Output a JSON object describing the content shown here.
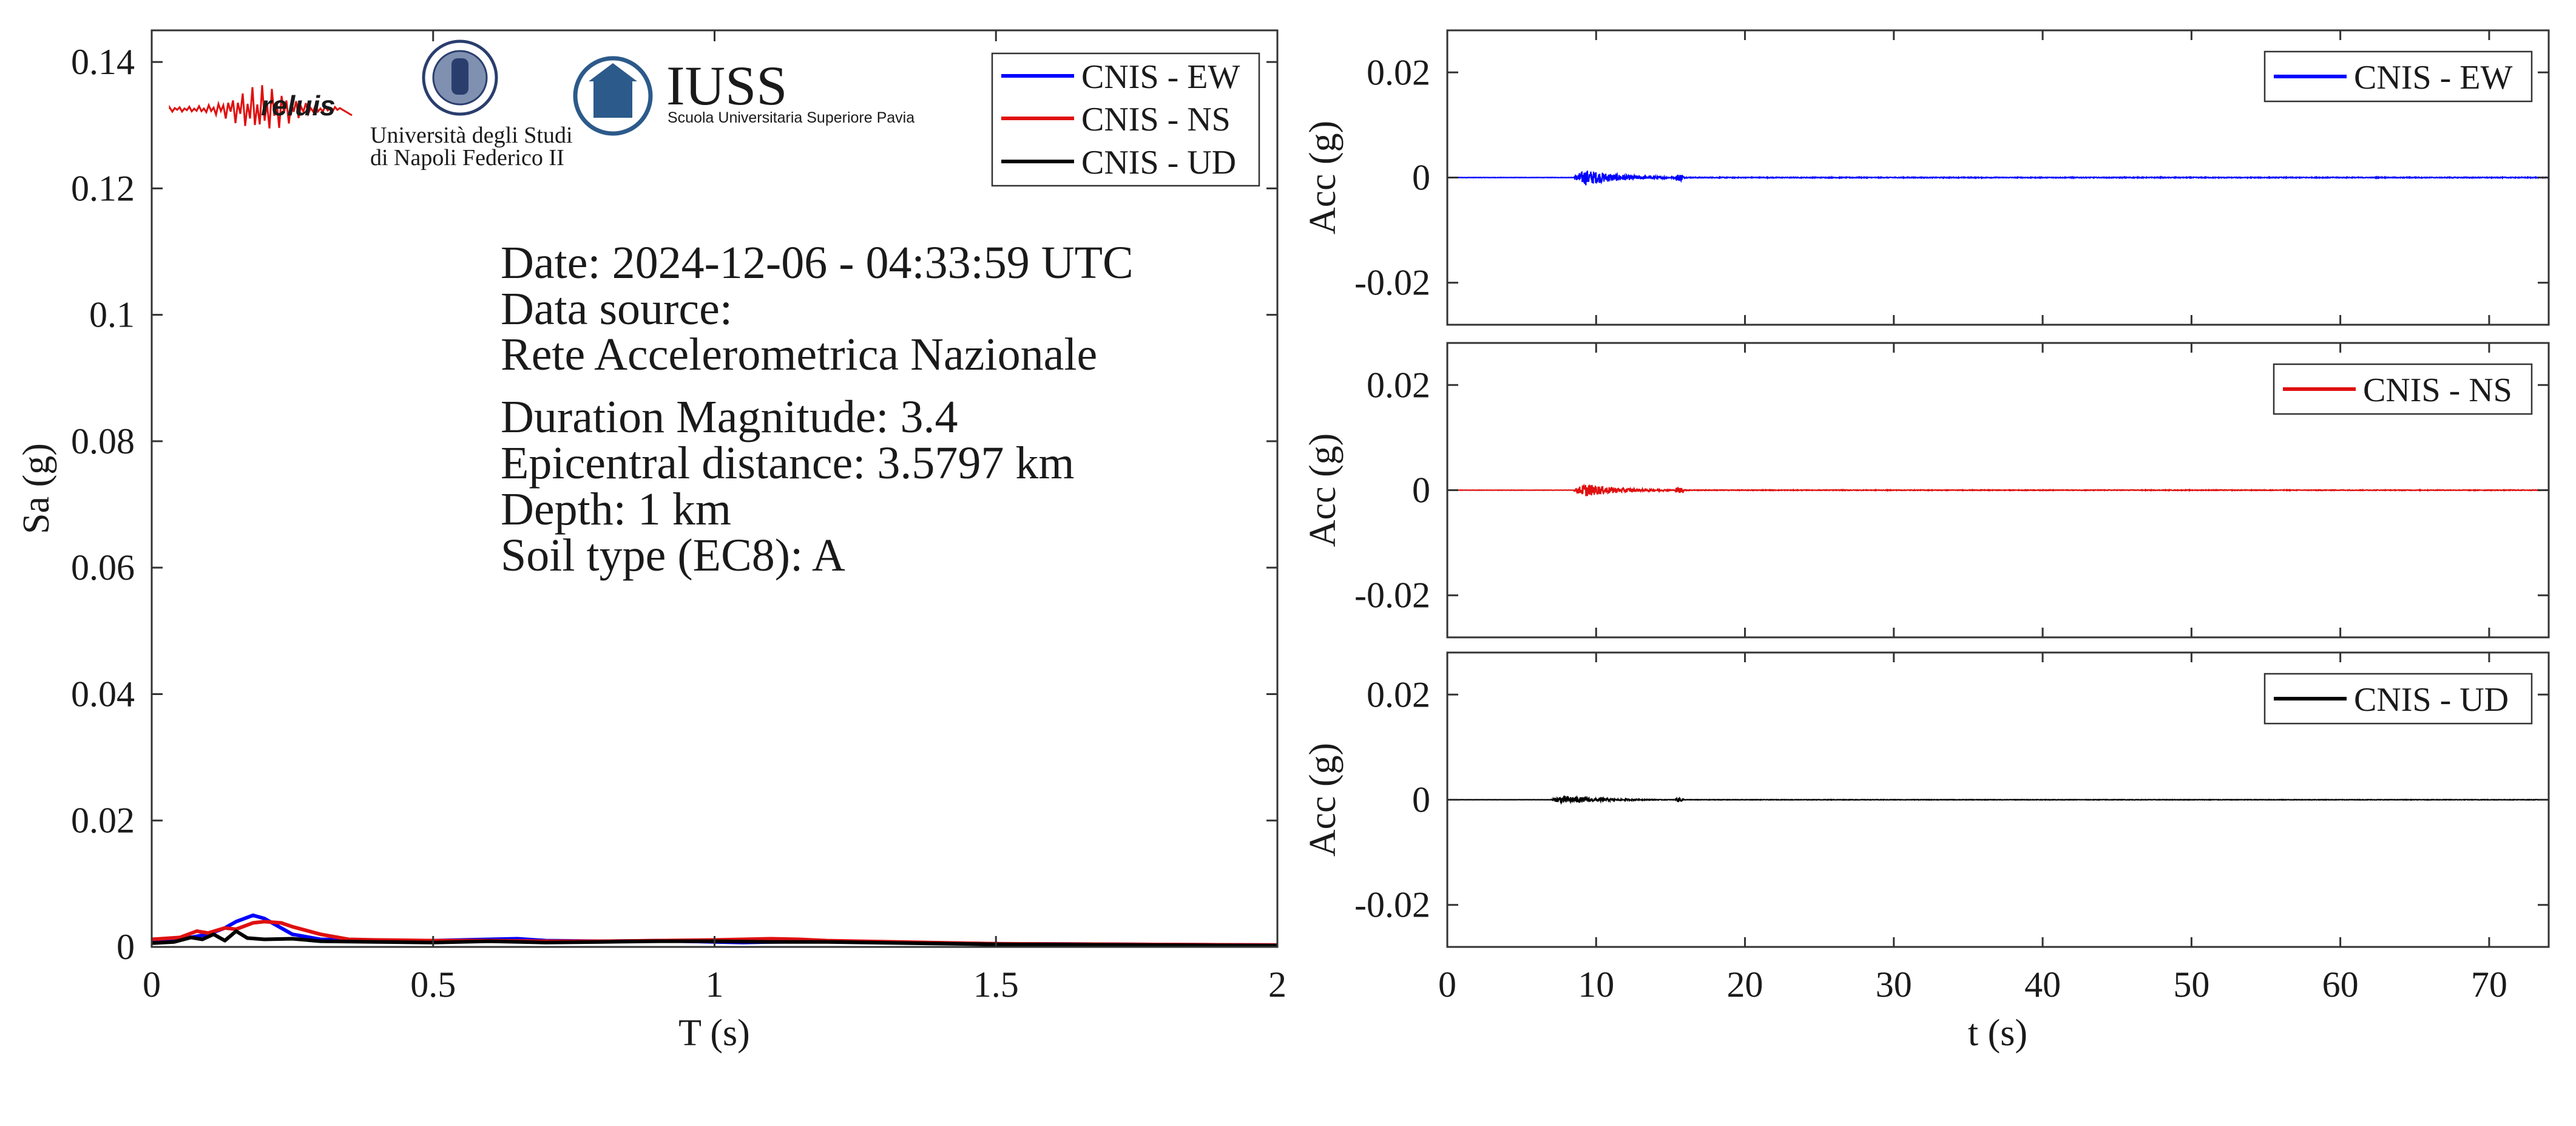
{
  "chart_data": [
    {
      "type": "line",
      "title": "",
      "xlabel": "T (s)",
      "ylabel": "Sa (g)",
      "xlim": [
        0,
        2
      ],
      "ylim": [
        0,
        0.145
      ],
      "xticks": [
        0,
        0.5,
        1,
        1.5,
        2
      ],
      "xtick_labels": [
        "0",
        "0.5",
        "1",
        "1.5",
        "2"
      ],
      "yticks": [
        0,
        0.02,
        0.04,
        0.06,
        0.08,
        0.1,
        0.12,
        0.14
      ],
      "ytick_labels": [
        "0",
        "0.02",
        "0.04",
        "0.06",
        "0.08",
        "0.1",
        "0.12",
        "0.14"
      ],
      "grid": false,
      "legend_position": "top-right",
      "series": [
        {
          "name": "CNIS - EW",
          "color": "#0000ff",
          "x": [
            0,
            0.05,
            0.1,
            0.13,
            0.15,
            0.18,
            0.2,
            0.25,
            0.3,
            0.4,
            0.5,
            0.6,
            0.65,
            0.7,
            0.8,
            0.9,
            1.0,
            1.05,
            1.1,
            1.2,
            1.5,
            2.0
          ],
          "y": [
            0.001,
            0.0012,
            0.002,
            0.003,
            0.004,
            0.005,
            0.0045,
            0.002,
            0.0012,
            0.001,
            0.001,
            0.0012,
            0.0013,
            0.001,
            0.0009,
            0.001,
            0.0008,
            0.0007,
            0.0008,
            0.0009,
            0.0005,
            0.0003
          ]
        },
        {
          "name": "CNIS - NS",
          "color": "#e01010",
          "x": [
            0,
            0.05,
            0.08,
            0.1,
            0.13,
            0.15,
            0.18,
            0.2,
            0.23,
            0.25,
            0.3,
            0.35,
            0.4,
            0.5,
            0.6,
            0.7,
            0.8,
            0.9,
            1.0,
            1.1,
            1.15,
            1.2,
            1.5,
            2.0
          ],
          "y": [
            0.0012,
            0.0015,
            0.0025,
            0.0022,
            0.003,
            0.0028,
            0.0038,
            0.004,
            0.0038,
            0.0032,
            0.002,
            0.0012,
            0.0011,
            0.001,
            0.001,
            0.0009,
            0.0009,
            0.001,
            0.0011,
            0.0013,
            0.0012,
            0.001,
            0.0005,
            0.0003
          ]
        },
        {
          "name": "CNIS - UD",
          "color": "#000000",
          "x": [
            0,
            0.04,
            0.07,
            0.09,
            0.11,
            0.13,
            0.15,
            0.17,
            0.2,
            0.25,
            0.3,
            0.4,
            0.5,
            0.6,
            0.7,
            0.8,
            0.9,
            1.0,
            1.1,
            1.2,
            1.5,
            2.0
          ],
          "y": [
            0.0006,
            0.0008,
            0.0015,
            0.0012,
            0.002,
            0.001,
            0.0025,
            0.0014,
            0.0012,
            0.0013,
            0.0009,
            0.0008,
            0.0007,
            0.0009,
            0.0007,
            0.0008,
            0.0009,
            0.0009,
            0.0008,
            0.0008,
            0.0004,
            0.0002
          ]
        }
      ]
    },
    {
      "type": "line",
      "title": "",
      "xlabel": "",
      "ylabel": "Acc (g)",
      "xlim": [
        0,
        74
      ],
      "ylim": [
        -0.028,
        0.028
      ],
      "yticks": [
        -0.02,
        0,
        0.02
      ],
      "ytick_labels": [
        "-0.02",
        "0",
        "0.02"
      ],
      "xticks": [
        0,
        10,
        20,
        30,
        40,
        50,
        60,
        70
      ],
      "grid": false,
      "legend_position": "top-right",
      "series": [
        {
          "name": "CNIS - EW",
          "color": "#0000ff",
          "onset": 8.5,
          "peak": 0.0015
        }
      ]
    },
    {
      "type": "line",
      "title": "",
      "xlabel": "",
      "ylabel": "Acc (g)",
      "xlim": [
        0,
        74
      ],
      "ylim": [
        -0.028,
        0.028
      ],
      "yticks": [
        -0.02,
        0,
        0.02
      ],
      "ytick_labels": [
        "-0.02",
        "0",
        "0.02"
      ],
      "xticks": [
        0,
        10,
        20,
        30,
        40,
        50,
        60,
        70
      ],
      "grid": false,
      "legend_position": "top-right",
      "series": [
        {
          "name": "CNIS - NS",
          "color": "#e01010",
          "onset": 8.5,
          "peak": 0.0012
        }
      ]
    },
    {
      "type": "line",
      "title": "",
      "xlabel": "t (s)",
      "ylabel": "Acc (g)",
      "xlim": [
        0,
        74
      ],
      "ylim": [
        -0.028,
        0.028
      ],
      "yticks": [
        -0.02,
        0,
        0.02
      ],
      "ytick_labels": [
        "-0.02",
        "0",
        "0.02"
      ],
      "xticks": [
        0,
        10,
        20,
        30,
        40,
        50,
        60,
        70
      ],
      "xtick_labels": [
        "0",
        "10",
        "20",
        "30",
        "40",
        "50",
        "60",
        "70"
      ],
      "grid": false,
      "legend_position": "top-right",
      "series": [
        {
          "name": "CNIS - UD",
          "color": "#000000",
          "onset": 7.0,
          "peak": 0.0008
        }
      ]
    }
  ],
  "info": {
    "date": "Date: 2024-12-06 - 04:33:59 UTC",
    "source_label": "Data source:",
    "source_name": "Rete Accelerometrica Nazionale",
    "magnitude": "Duration Magnitude: 3.4",
    "distance": "Epicentral distance: 3.5797 km",
    "depth": "Depth: 1 km",
    "soil": "Soil type (EC8): A"
  },
  "logos": {
    "reluis": "reluis",
    "unina_line1": "Università degli Studi",
    "unina_line2": "di Napoli Federico II",
    "iuss_name": "IUSS",
    "iuss_sub": "Scuola Universitaria Superiore Pavia",
    "iuss_color": "#2c5a8a",
    "unina_color": "#2a3e6e",
    "reluis_color": "#1a2a80",
    "reluis_wave_color": "#e01010"
  }
}
